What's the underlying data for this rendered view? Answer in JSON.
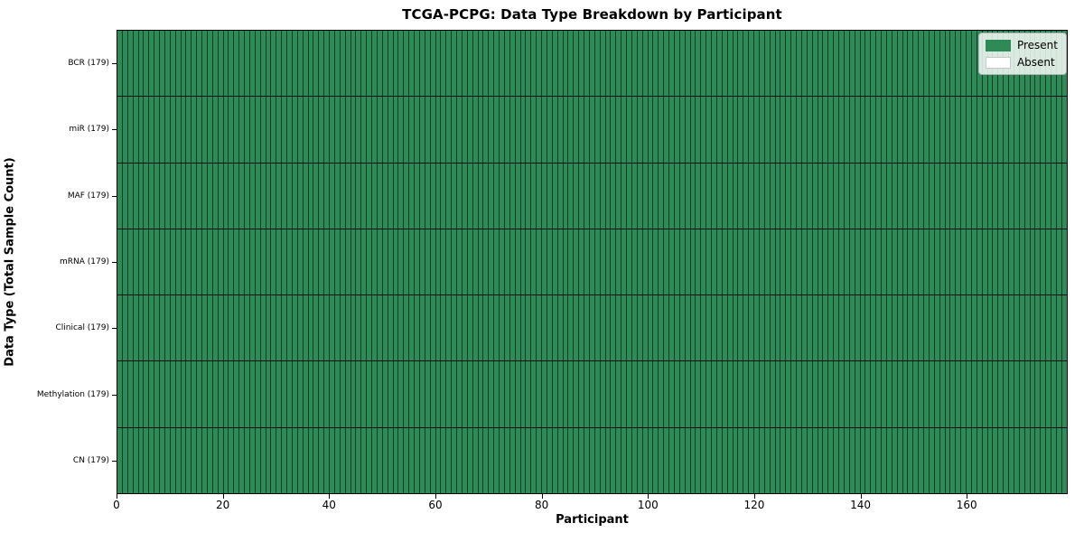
{
  "chart_data": {
    "type": "heatmap",
    "title": "TCGA-PCPG: Data Type Breakdown by Participant",
    "xlabel": "Participant",
    "ylabel": "Data Type (Total Sample Count)",
    "x_ticks": [
      0,
      20,
      40,
      60,
      80,
      100,
      120,
      140,
      160
    ],
    "x_range": [
      0,
      179
    ],
    "n_participants": 179,
    "rows": [
      {
        "label": "BCR (179)",
        "data_type": "BCR",
        "total_sample_count": 179,
        "present_count": 179,
        "absent_count": 0
      },
      {
        "label": "miR (179)",
        "data_type": "miR",
        "total_sample_count": 179,
        "present_count": 179,
        "absent_count": 0
      },
      {
        "label": "MAF (179)",
        "data_type": "MAF",
        "total_sample_count": 179,
        "present_count": 179,
        "absent_count": 0
      },
      {
        "label": "mRNA (179)",
        "data_type": "mRNA",
        "total_sample_count": 179,
        "present_count": 179,
        "absent_count": 0
      },
      {
        "label": "Clinical (179)",
        "data_type": "Clinical",
        "total_sample_count": 179,
        "present_count": 179,
        "absent_count": 0
      },
      {
        "label": "Methylation (179)",
        "data_type": "Methylation",
        "total_sample_count": 179,
        "present_count": 179,
        "absent_count": 0
      },
      {
        "label": "CN (179)",
        "data_type": "CN",
        "total_sample_count": 179,
        "present_count": 179,
        "absent_count": 0
      }
    ],
    "legend": {
      "position": "upper-right",
      "entries": [
        {
          "label": "Present",
          "color": "#2e8b57"
        },
        {
          "label": "Absent",
          "color": "#ffffff"
        }
      ]
    },
    "colors": {
      "present": "#2e8b57",
      "absent": "#ffffff",
      "cell_edge": "#17402a",
      "row_separator": "#101010",
      "axes_border": "#000000",
      "background": "#ffffff"
    },
    "grid": "cell-borders",
    "legend_swatch_absent_border": "#c8c8c8"
  }
}
